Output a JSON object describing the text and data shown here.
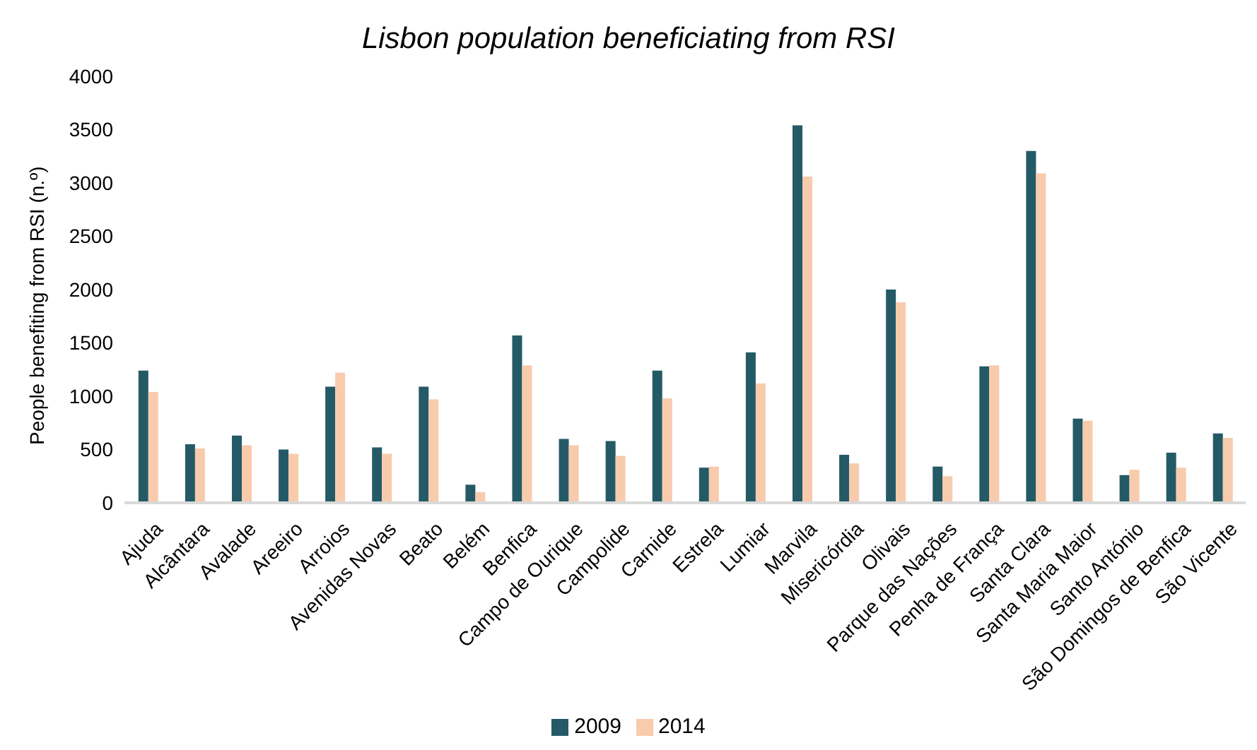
{
  "chart_data": {
    "type": "bar",
    "title": "Lisbon population beneficiating from RSI",
    "ylabel": "People benefiting from RSI (n.º)",
    "categories": [
      "Ajuda",
      "Alcântara",
      "Avalade",
      "Areeiro",
      "Arroios",
      "Avenidas Novas",
      "Beato",
      "Belém",
      "Benfica",
      "Campo de Ourique",
      "Campolide",
      "Carnide",
      "Estrela",
      "Lumiar",
      "Marvila",
      "Misericórdia",
      "Olivais",
      "Parque das Nações",
      "Penha de França",
      "Santa Clara",
      "Santa Maria Maior",
      "Santo António",
      "São Domingos de Benfica",
      "São Vicente"
    ],
    "series": [
      {
        "name": "2009",
        "color": "#245a66",
        "values": [
          1240,
          550,
          630,
          500,
          1090,
          520,
          1090,
          170,
          1570,
          600,
          580,
          1240,
          330,
          1410,
          3540,
          450,
          2000,
          340,
          1280,
          3300,
          790,
          260,
          470,
          650
        ]
      },
      {
        "name": "2014",
        "color": "#f8cbad",
        "values": [
          1040,
          510,
          540,
          460,
          1220,
          460,
          970,
          100,
          1290,
          540,
          440,
          980,
          340,
          1120,
          3060,
          370,
          1880,
          250,
          1290,
          3090,
          770,
          310,
          330,
          610
        ]
      }
    ],
    "ylim": [
      0,
      4000
    ],
    "yticks": [
      0,
      500,
      1000,
      1500,
      2000,
      2500,
      3000,
      3500,
      4000
    ],
    "grid": false,
    "legend": "bottom"
  }
}
